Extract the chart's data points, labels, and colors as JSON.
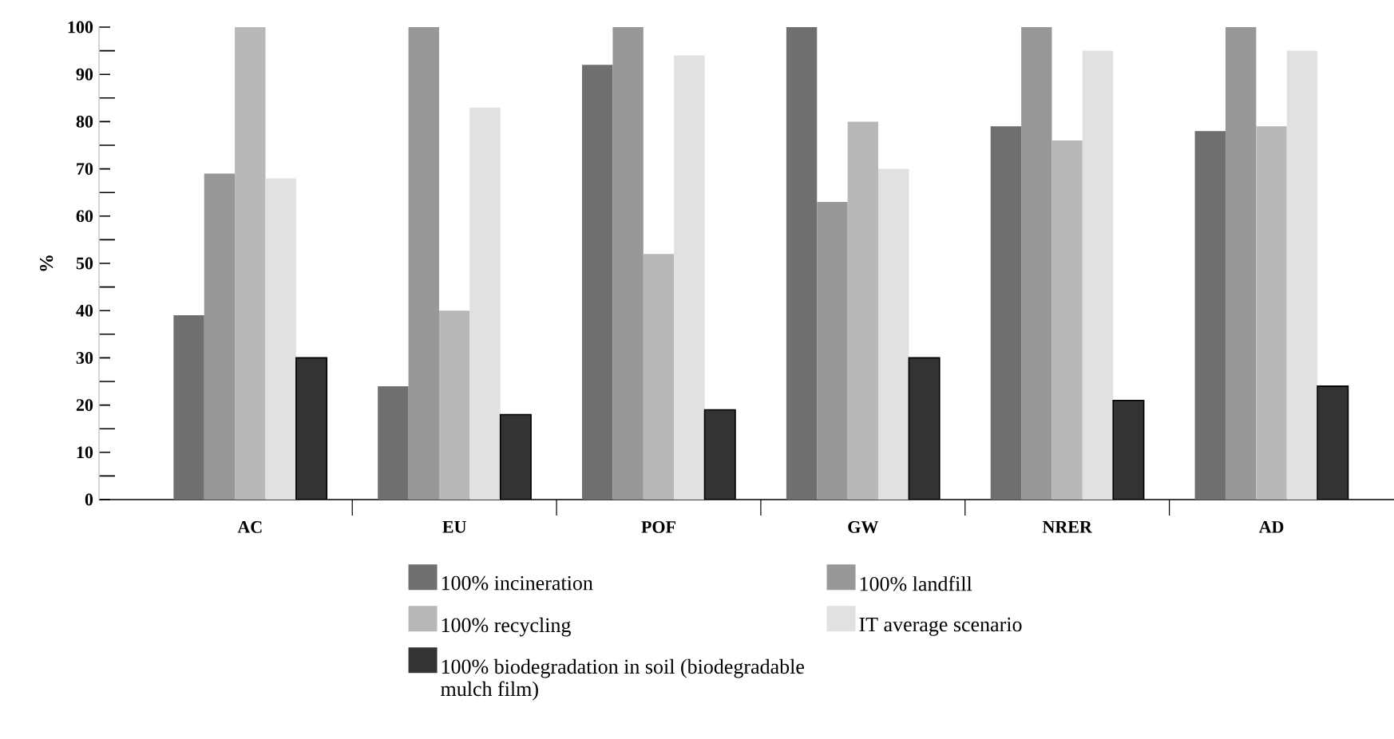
{
  "chart_data": {
    "type": "bar",
    "ylabel": "%",
    "categories": [
      "AC",
      "EU",
      "POF",
      "GW",
      "NRER",
      "AD"
    ],
    "series": [
      {
        "name": "100% incineration",
        "color": "#6f6f6d",
        "values": [
          39,
          24,
          92,
          100,
          79,
          78
        ]
      },
      {
        "name": "100% landfill",
        "color": "#989898",
        "values": [
          69,
          100,
          100,
          63,
          100,
          100
        ]
      },
      {
        "name": "100% recycling",
        "color": "#b8b8b8",
        "values": [
          100,
          40,
          52,
          80,
          76,
          79
        ]
      },
      {
        "name": "IT average scenario",
        "color": "#e1e1e1",
        "values": [
          68,
          83,
          94,
          70,
          95,
          95
        ]
      },
      {
        "name": "100% biodegradation in soil (biodegradable mulch film)",
        "color": "#333333",
        "values": [
          30,
          18,
          19,
          30,
          21,
          24
        ]
      }
    ],
    "ylim": [
      0,
      100
    ],
    "yticks": [
      0,
      10,
      20,
      30,
      40,
      50,
      60,
      70,
      80,
      90,
      100
    ],
    "grid": false,
    "legend": "bottom"
  }
}
